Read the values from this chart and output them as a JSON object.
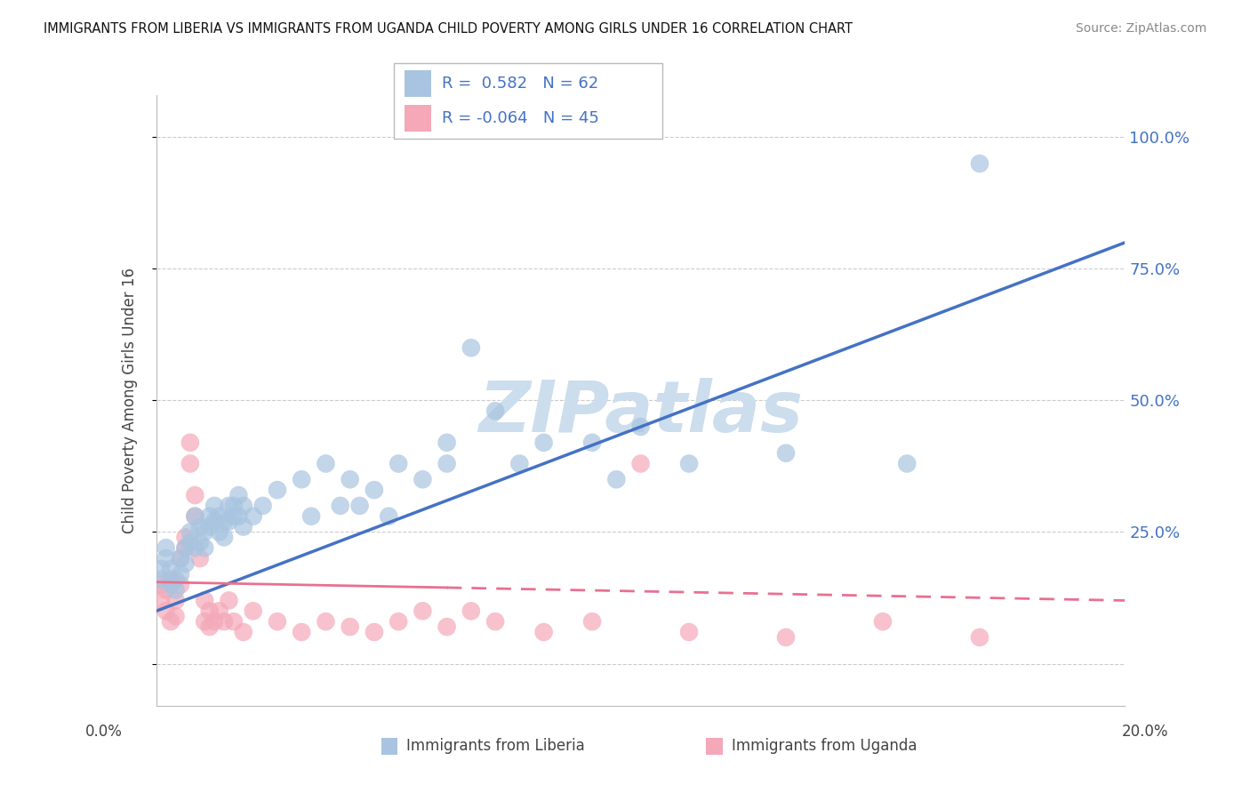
{
  "title": "IMMIGRANTS FROM LIBERIA VS IMMIGRANTS FROM UGANDA CHILD POVERTY AMONG GIRLS UNDER 16 CORRELATION CHART",
  "source": "Source: ZipAtlas.com",
  "ylabel": "Child Poverty Among Girls Under 16",
  "y_ticks": [
    0.0,
    0.25,
    0.5,
    0.75,
    1.0
  ],
  "y_tick_labels": [
    "",
    "25.0%",
    "50.0%",
    "75.0%",
    "100.0%"
  ],
  "x_range": [
    0.0,
    0.2
  ],
  "y_range": [
    -0.08,
    1.08
  ],
  "liberia_R": 0.582,
  "liberia_N": 62,
  "uganda_R": -0.064,
  "uganda_N": 45,
  "liberia_color": "#a8c4e0",
  "uganda_color": "#f4a8b8",
  "liberia_line_color": "#4472c4",
  "uganda_line_color": "#e87090",
  "watermark": "ZIPatlas",
  "watermark_color": "#ccdded",
  "liberia_scatter": [
    [
      0.001,
      0.18
    ],
    [
      0.001,
      0.16
    ],
    [
      0.002,
      0.2
    ],
    [
      0.002,
      0.22
    ],
    [
      0.003,
      0.15
    ],
    [
      0.003,
      0.18
    ],
    [
      0.004,
      0.16
    ],
    [
      0.004,
      0.14
    ],
    [
      0.005,
      0.2
    ],
    [
      0.005,
      0.17
    ],
    [
      0.006,
      0.22
    ],
    [
      0.006,
      0.19
    ],
    [
      0.007,
      0.25
    ],
    [
      0.007,
      0.23
    ],
    [
      0.008,
      0.28
    ],
    [
      0.008,
      0.22
    ],
    [
      0.009,
      0.26
    ],
    [
      0.009,
      0.23
    ],
    [
      0.01,
      0.25
    ],
    [
      0.01,
      0.22
    ],
    [
      0.011,
      0.28
    ],
    [
      0.011,
      0.26
    ],
    [
      0.012,
      0.3
    ],
    [
      0.012,
      0.27
    ],
    [
      0.013,
      0.28
    ],
    [
      0.013,
      0.25
    ],
    [
      0.014,
      0.27
    ],
    [
      0.014,
      0.24
    ],
    [
      0.015,
      0.3
    ],
    [
      0.015,
      0.27
    ],
    [
      0.016,
      0.3
    ],
    [
      0.016,
      0.28
    ],
    [
      0.017,
      0.32
    ],
    [
      0.017,
      0.28
    ],
    [
      0.018,
      0.3
    ],
    [
      0.018,
      0.26
    ],
    [
      0.02,
      0.28
    ],
    [
      0.022,
      0.3
    ],
    [
      0.025,
      0.33
    ],
    [
      0.03,
      0.35
    ],
    [
      0.032,
      0.28
    ],
    [
      0.035,
      0.38
    ],
    [
      0.038,
      0.3
    ],
    [
      0.04,
      0.35
    ],
    [
      0.042,
      0.3
    ],
    [
      0.045,
      0.33
    ],
    [
      0.048,
      0.28
    ],
    [
      0.05,
      0.38
    ],
    [
      0.055,
      0.35
    ],
    [
      0.06,
      0.42
    ],
    [
      0.06,
      0.38
    ],
    [
      0.065,
      0.6
    ],
    [
      0.07,
      0.48
    ],
    [
      0.075,
      0.38
    ],
    [
      0.08,
      0.42
    ],
    [
      0.09,
      0.42
    ],
    [
      0.095,
      0.35
    ],
    [
      0.1,
      0.45
    ],
    [
      0.11,
      0.38
    ],
    [
      0.13,
      0.4
    ],
    [
      0.155,
      0.38
    ],
    [
      0.17,
      0.95
    ]
  ],
  "uganda_scatter": [
    [
      0.001,
      0.15
    ],
    [
      0.001,
      0.12
    ],
    [
      0.002,
      0.1
    ],
    [
      0.002,
      0.14
    ],
    [
      0.003,
      0.08
    ],
    [
      0.003,
      0.16
    ],
    [
      0.004,
      0.12
    ],
    [
      0.004,
      0.09
    ],
    [
      0.005,
      0.15
    ],
    [
      0.005,
      0.2
    ],
    [
      0.006,
      0.22
    ],
    [
      0.006,
      0.24
    ],
    [
      0.007,
      0.38
    ],
    [
      0.007,
      0.42
    ],
    [
      0.008,
      0.28
    ],
    [
      0.008,
      0.32
    ],
    [
      0.009,
      0.2
    ],
    [
      0.01,
      0.12
    ],
    [
      0.01,
      0.08
    ],
    [
      0.011,
      0.1
    ],
    [
      0.011,
      0.07
    ],
    [
      0.012,
      0.08
    ],
    [
      0.013,
      0.1
    ],
    [
      0.014,
      0.08
    ],
    [
      0.015,
      0.12
    ],
    [
      0.016,
      0.08
    ],
    [
      0.018,
      0.06
    ],
    [
      0.02,
      0.1
    ],
    [
      0.025,
      0.08
    ],
    [
      0.03,
      0.06
    ],
    [
      0.035,
      0.08
    ],
    [
      0.04,
      0.07
    ],
    [
      0.045,
      0.06
    ],
    [
      0.05,
      0.08
    ],
    [
      0.055,
      0.1
    ],
    [
      0.06,
      0.07
    ],
    [
      0.065,
      0.1
    ],
    [
      0.07,
      0.08
    ],
    [
      0.08,
      0.06
    ],
    [
      0.09,
      0.08
    ],
    [
      0.1,
      0.38
    ],
    [
      0.11,
      0.06
    ],
    [
      0.13,
      0.05
    ],
    [
      0.15,
      0.08
    ],
    [
      0.17,
      0.05
    ]
  ],
  "liberia_line_y0": 0.1,
  "liberia_line_y1": 0.8,
  "uganda_line_y0": 0.155,
  "uganda_line_y1": 0.12
}
